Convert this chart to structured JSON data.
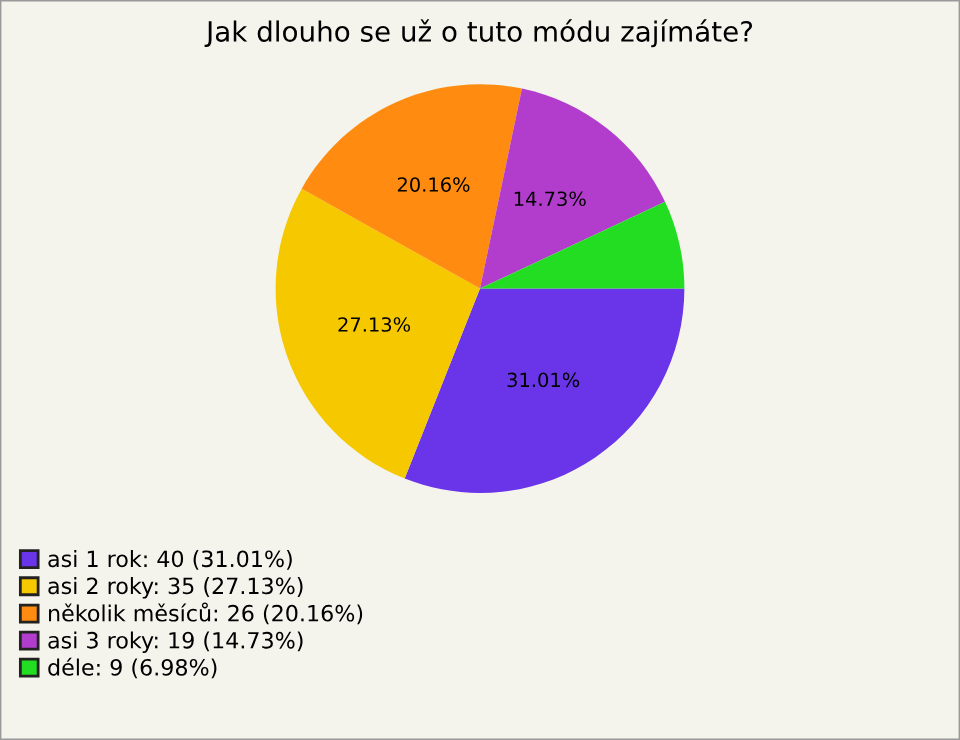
{
  "chart_data": {
    "type": "pie",
    "title": "Jak dlouho se už o tuto módu zajímáte?",
    "categories": [
      "asi 1 rok: 40 (31.01%)",
      "asi 2 roky: 35 (27.13%)",
      "několik měsíců: 26 (20.16%)",
      "asi 3 roky: 19 (14.73%)",
      "déle: 9 (6.98%)"
    ],
    "values": [
      31.01,
      27.13,
      20.16,
      14.73,
      6.98
    ],
    "colors": [
      "#6a35e8",
      "#f5c800",
      "#ff8c10",
      "#b23ccc",
      "#22dd22"
    ],
    "value_labels": [
      "31.01%",
      "27.13%",
      "20.16%",
      "14.73%",
      null
    ],
    "legend": "bottom left"
  }
}
